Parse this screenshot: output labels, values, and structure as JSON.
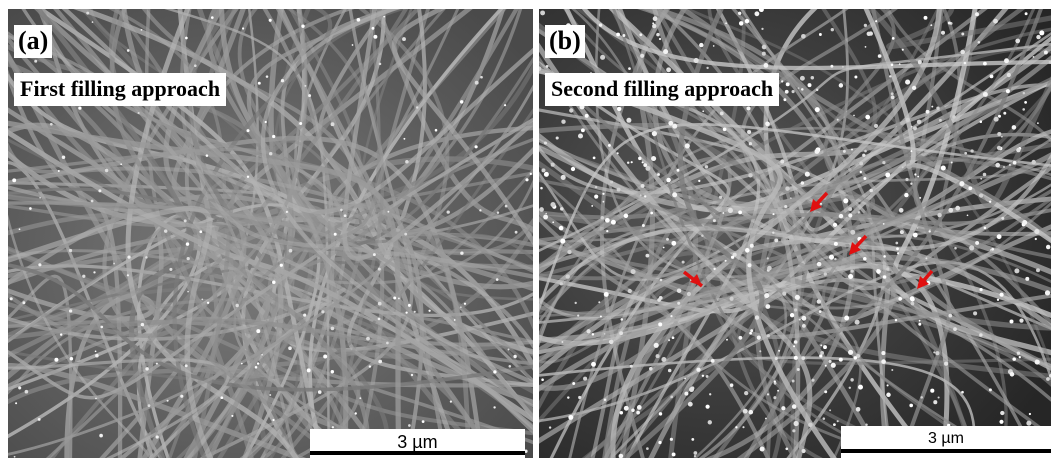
{
  "figure": {
    "panel_a": {
      "label": "(a)",
      "caption": "First filling approach",
      "scale_bar": "3 µm",
      "image": "SEM micrograph of an entangled nanofiber network with sparse bright particles"
    },
    "panel_b": {
      "label": "(b)",
      "caption": "Second filling approach",
      "scale_bar": "3 µm",
      "image": "SEM micrograph of a nanofiber network with dense bright particles on a darker background",
      "arrow_color": "#e01010"
    }
  }
}
